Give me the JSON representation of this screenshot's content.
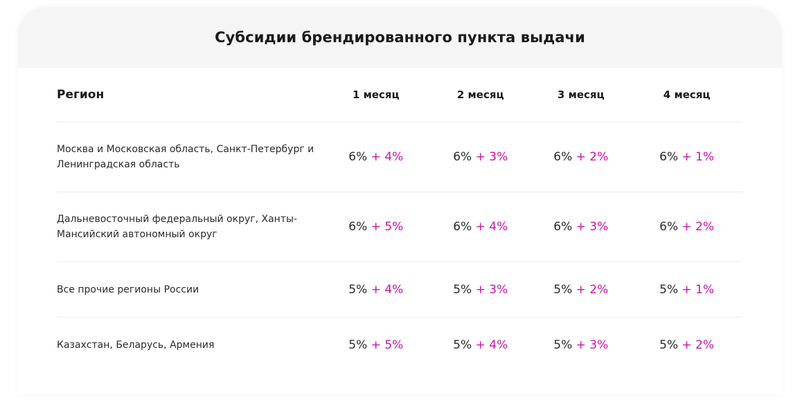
{
  "title": "Субсидии брендированного пункта выдачи",
  "columns": {
    "region": "Регион",
    "months": [
      "1 месяц",
      "2 месяц",
      "3 месяц",
      "4 месяц"
    ]
  },
  "rows": [
    {
      "region": "Москва и Московская область, Санкт-Петербург и Ленинградская область",
      "cells": [
        {
          "base": "6%",
          "bonus": " + 4%"
        },
        {
          "base": "6%",
          "bonus": " + 3%"
        },
        {
          "base": "6%",
          "bonus": " + 2%"
        },
        {
          "base": "6%",
          "bonus": " + 1%"
        }
      ]
    },
    {
      "region": "Дальневосточный федеральный округ, Ханты-Мансийский автономный округ",
      "cells": [
        {
          "base": "6%",
          "bonus": " + 5%"
        },
        {
          "base": "6%",
          "bonus": " + 4%"
        },
        {
          "base": "6%",
          "bonus": " + 3%"
        },
        {
          "base": "6%",
          "bonus": " + 2%"
        }
      ]
    },
    {
      "region": "Все прочие регионы России",
      "cells": [
        {
          "base": "5%",
          "bonus": " + 4%"
        },
        {
          "base": "5%",
          "bonus": " + 3%"
        },
        {
          "base": "5%",
          "bonus": " + 2%"
        },
        {
          "base": "5%",
          "bonus": " + 1%"
        }
      ]
    },
    {
      "region": "Казахстан, Беларусь, Армения",
      "cells": [
        {
          "base": "5%",
          "bonus": " + 5%"
        },
        {
          "base": "5%",
          "bonus": " + 4%"
        },
        {
          "base": "5%",
          "bonus": " + 3%"
        },
        {
          "base": "5%",
          "bonus": " + 2%"
        }
      ]
    }
  ],
  "colors": {
    "accent": "#cb11ab",
    "header_bg": "#f5f5f5",
    "text": "#2a2a2a"
  }
}
